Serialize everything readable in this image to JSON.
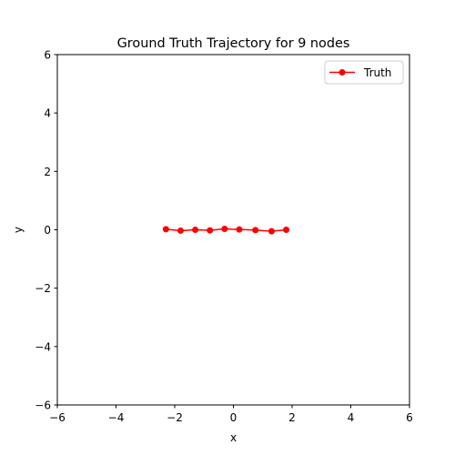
{
  "chart_data": {
    "type": "line",
    "title": "Ground Truth Trajectory for 9 nodes",
    "xlabel": "x",
    "ylabel": "y",
    "xlim": [
      -6,
      6
    ],
    "ylim": [
      -6,
      6
    ],
    "xticks": [
      -6,
      -4,
      -2,
      0,
      2,
      4,
      6
    ],
    "yticks": [
      -6,
      -4,
      -2,
      0,
      2,
      4,
      6
    ],
    "grid": false,
    "legend_position": "top-right",
    "series": [
      {
        "name": "Truth",
        "color": "#ff0000",
        "marker": "circle",
        "x": [
          -2.3,
          -1.8,
          -1.3,
          -0.8,
          -0.3,
          0.2,
          0.75,
          1.3,
          1.8
        ],
        "y": [
          0.02,
          -0.03,
          0.0,
          -0.02,
          0.03,
          0.01,
          -0.01,
          -0.05,
          0.0
        ]
      }
    ]
  }
}
